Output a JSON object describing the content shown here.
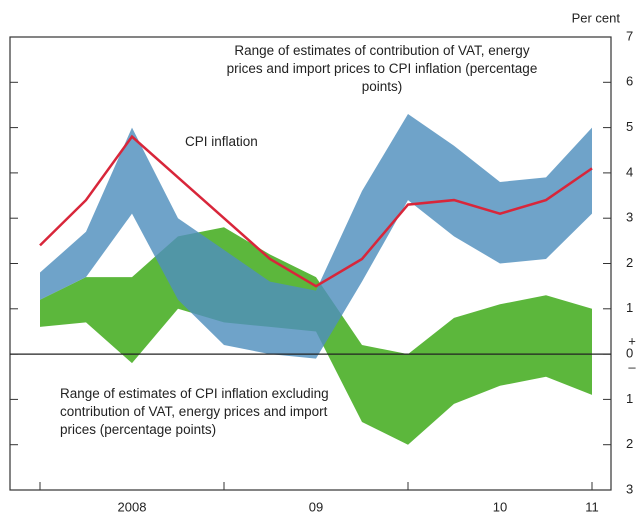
{
  "chart_data": {
    "type": "band-line",
    "y_axis_label": "Per cent",
    "zero_signs": [
      "+",
      "–"
    ],
    "categories": [
      null,
      null,
      "2008",
      null,
      null,
      null,
      "09",
      null,
      null,
      null,
      "10",
      null,
      "11"
    ],
    "ylim": [
      -3,
      7
    ],
    "yticks": [
      {
        "value": -3,
        "label": "3"
      },
      {
        "value": -2,
        "label": "2"
      },
      {
        "value": -1,
        "label": "1"
      },
      0,
      1,
      2,
      3,
      4,
      5,
      6,
      7
    ],
    "series": [
      {
        "name": "Range of estimates of CPI inflation excluding contribution of VAT, energy prices and import prices (percentage points)",
        "kind": "band",
        "color": "#5cb73c",
        "upper": [
          1.2,
          1.7,
          1.7,
          2.6,
          2.8,
          2.2,
          1.7,
          0.2,
          0.0,
          0.8,
          1.1,
          1.3,
          1.0
        ],
        "lower": [
          0.6,
          0.7,
          -0.2,
          1.0,
          0.7,
          0.6,
          0.5,
          -1.5,
          -2.0,
          -1.1,
          -0.7,
          -0.5,
          -0.9
        ]
      },
      {
        "name": "Range of estimates of contribution of VAT, energy prices and import prices to CPI inflation (percentage points)",
        "kind": "band",
        "color": "#4f8fbd",
        "upper": [
          1.8,
          2.7,
          5.0,
          3.0,
          2.3,
          1.6,
          1.4,
          3.6,
          5.3,
          4.6,
          3.8,
          3.9,
          5.0
        ],
        "lower": [
          1.2,
          1.7,
          3.1,
          1.2,
          0.2,
          0.0,
          -0.1,
          1.6,
          3.4,
          2.6,
          2.0,
          2.1,
          3.1
        ]
      },
      {
        "name": "CPI inflation",
        "kind": "line",
        "color": "#d8263a",
        "values": [
          2.4,
          3.4,
          4.8,
          3.9,
          3.0,
          2.1,
          1.5,
          2.1,
          3.3,
          3.4,
          3.1,
          3.4,
          4.1
        ]
      }
    ]
  }
}
